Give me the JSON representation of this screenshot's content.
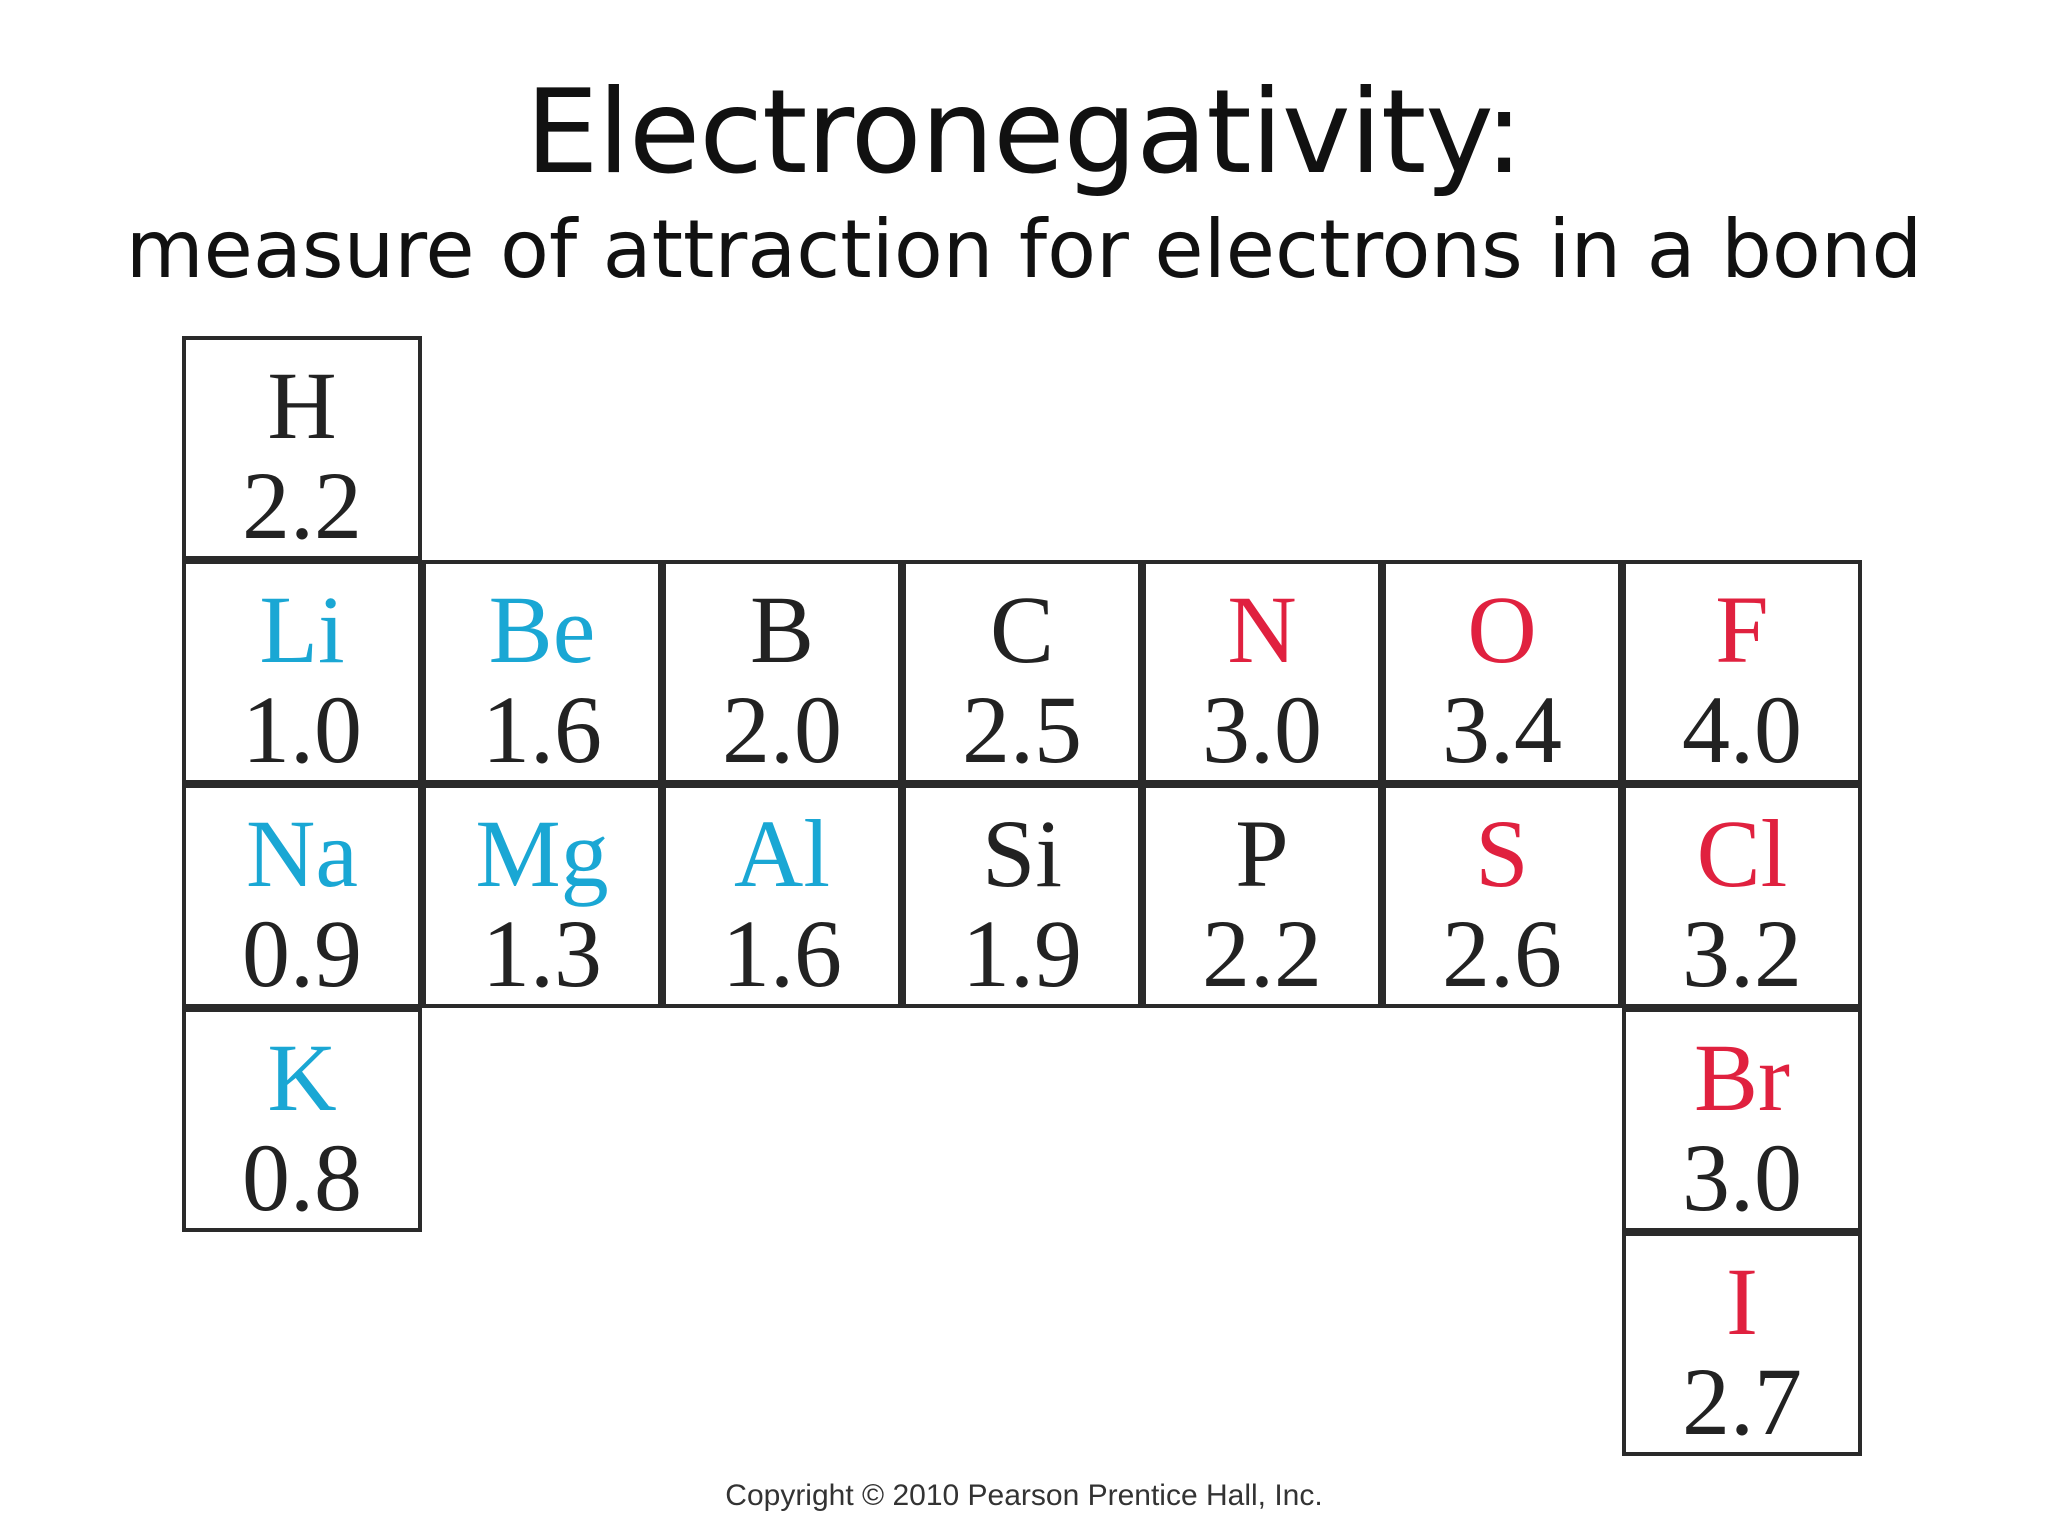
{
  "slide": {
    "title": "Electronegativity:",
    "subtitle": "measure of attraction for electrons in a bond",
    "copyright": "Copyright © 2010 Pearson Prentice Hall, Inc."
  },
  "colors": {
    "metal": "#1aa7d4",
    "nonmetal": "#e0213f",
    "neutral": "#222222"
  },
  "elements": [
    {
      "symbol": "H",
      "value": "2.2",
      "color": "dark"
    },
    {
      "symbol": "Li",
      "value": "1.0",
      "color": "cyan"
    },
    {
      "symbol": "Be",
      "value": "1.6",
      "color": "cyan"
    },
    {
      "symbol": "B",
      "value": "2.0",
      "color": "dark"
    },
    {
      "symbol": "C",
      "value": "2.5",
      "color": "dark"
    },
    {
      "symbol": "N",
      "value": "3.0",
      "color": "red"
    },
    {
      "symbol": "O",
      "value": "3.4",
      "color": "red"
    },
    {
      "symbol": "F",
      "value": "4.0",
      "color": "red"
    },
    {
      "symbol": "Na",
      "value": "0.9",
      "color": "cyan"
    },
    {
      "symbol": "Mg",
      "value": "1.3",
      "color": "cyan"
    },
    {
      "symbol": "Al",
      "value": "1.6",
      "color": "cyan"
    },
    {
      "symbol": "Si",
      "value": "1.9",
      "color": "dark"
    },
    {
      "symbol": "P",
      "value": "2.2",
      "color": "dark"
    },
    {
      "symbol": "S",
      "value": "2.6",
      "color": "red"
    },
    {
      "symbol": "Cl",
      "value": "3.2",
      "color": "red"
    },
    {
      "symbol": "K",
      "value": "0.8",
      "color": "cyan"
    },
    {
      "symbol": "Br",
      "value": "3.0",
      "color": "red"
    },
    {
      "symbol": "I",
      "value": "2.7",
      "color": "red"
    }
  ]
}
